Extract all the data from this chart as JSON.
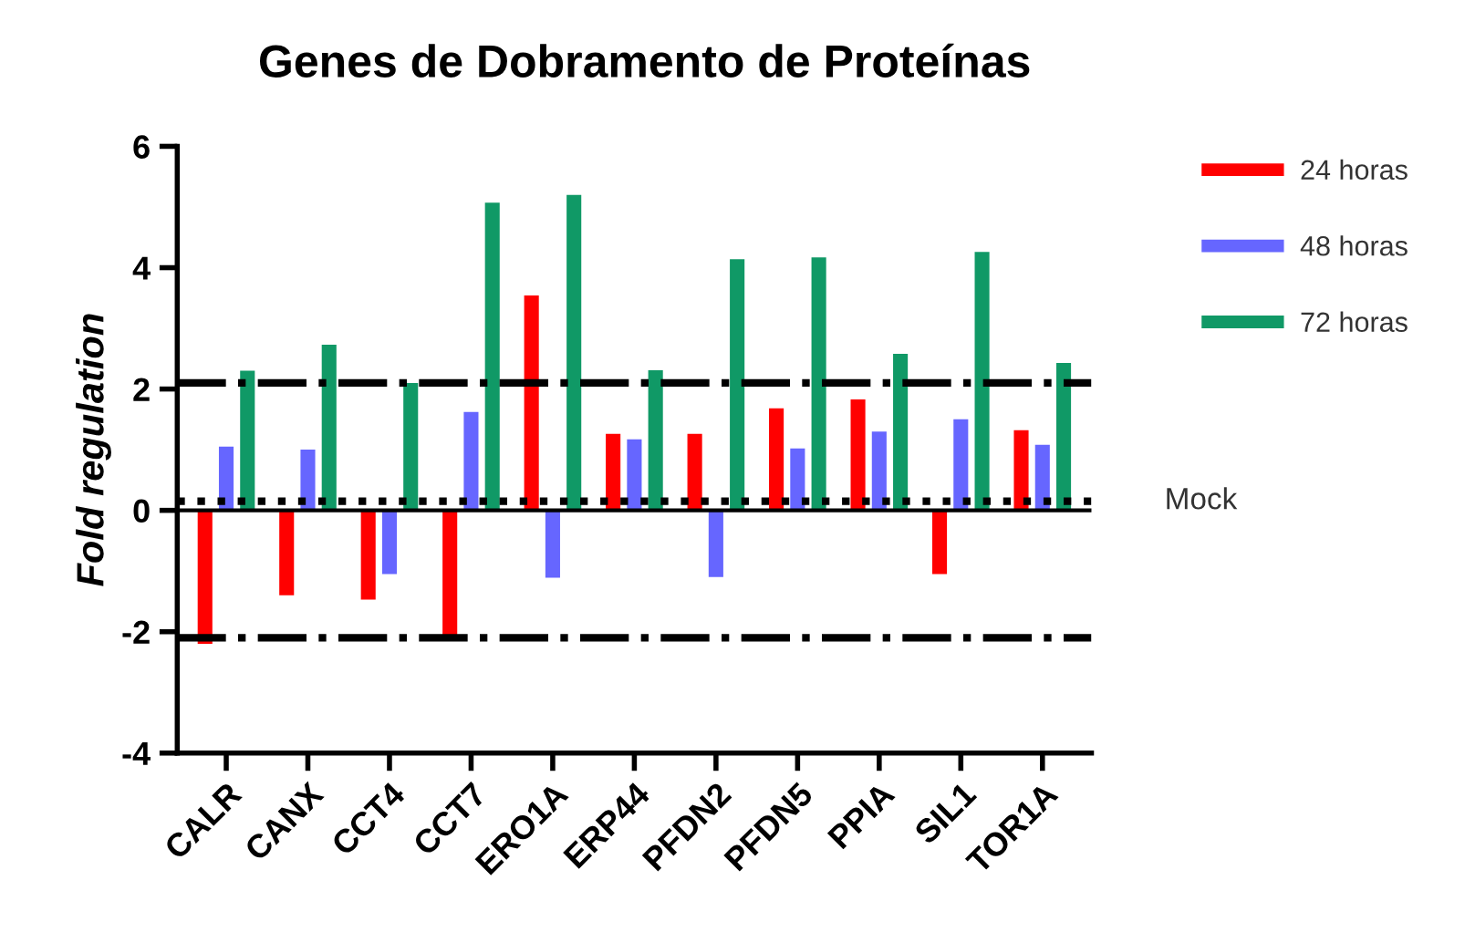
{
  "chart_data": {
    "type": "bar",
    "title": "Genes de Dobramento de Proteínas",
    "ylabel": "Fold regulation",
    "categories": [
      "CALR",
      "CANX",
      "CCT4",
      "CCT7",
      "ERO1A",
      "ERP44",
      "PFDN2",
      "PFDN5",
      "PPIA",
      "SIL1",
      "TOR1A"
    ],
    "series": [
      {
        "name": "24 horas",
        "color": "#ff0000",
        "values": [
          -2.2,
          -1.4,
          -1.47,
          -2.07,
          3.54,
          1.26,
          1.26,
          1.68,
          1.83,
          -1.05,
          1.32
        ]
      },
      {
        "name": "48 horas",
        "color": "#6666ff",
        "values": [
          1.05,
          1.0,
          -1.05,
          1.62,
          -1.11,
          1.17,
          -1.1,
          1.02,
          1.3,
          1.5,
          1.08
        ]
      },
      {
        "name": "72 horas",
        "color": "#109966",
        "values": [
          2.3,
          2.73,
          2.1,
          5.07,
          5.2,
          2.31,
          4.14,
          4.17,
          2.58,
          4.26,
          2.43
        ]
      }
    ],
    "ylim": [
      -4,
      6
    ],
    "yticks": [
      -4,
      -2,
      0,
      2,
      4,
      6
    ],
    "ref_lines": [
      {
        "axis": "y",
        "value": 0,
        "color": "#000000",
        "line_style": "solid"
      },
      {
        "axis": "y",
        "value": 2.1,
        "color": "#000000",
        "line_style": "dashdot"
      },
      {
        "axis": "y",
        "value": -2.1,
        "color": "#000000",
        "line_style": "dashdot"
      },
      {
        "axis": "y",
        "value": 0.15,
        "label": "Mock",
        "color": "#000000",
        "line_style": "dotted"
      }
    ],
    "legend": "top right",
    "grid": false
  }
}
